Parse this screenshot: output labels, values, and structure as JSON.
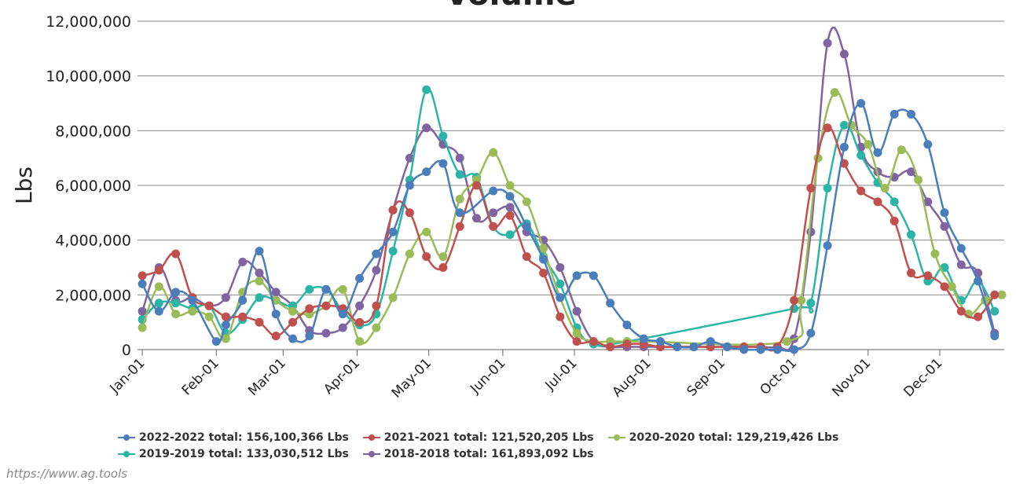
{
  "chart_data": {
    "type": "line",
    "title": "Volume",
    "xlabel": "",
    "ylabel": "Lbs",
    "ylim": [
      0,
      12000000
    ],
    "yticks": [
      0,
      2000000,
      4000000,
      6000000,
      8000000,
      10000000,
      12000000
    ],
    "ytick_labels": [
      "0",
      "2,000,000",
      "4,000,000",
      "6,000,000",
      "8,000,000",
      "10,000,000",
      "12,000,000"
    ],
    "xlim_day_of_year": [
      -2,
      361
    ],
    "xticks_day_of_year": [
      0,
      31,
      59,
      90,
      120,
      151,
      181,
      212,
      243,
      273,
      304,
      334
    ],
    "xtick_labels": [
      "Jan-01",
      "Feb-01",
      "Mar-01",
      "Apr-01",
      "May-01",
      "Jun-01",
      "Jul-01",
      "Aug-01",
      "Sep-01",
      "Oct-01",
      "Nov-01",
      "Dec-01"
    ],
    "x_note": "x values are day-of-year (0 = Jan-01)",
    "grid": "horizontal",
    "legend_position": "bottom",
    "series": [
      {
        "name": "2022-2022",
        "legend_label": "2022-2022 total: 156,100,366 Lbs",
        "color": "#4a7ebb",
        "points": [
          [
            0,
            2400000
          ],
          [
            7,
            1400000
          ],
          [
            14,
            2100000
          ],
          [
            21,
            1800000
          ],
          [
            31,
            300000
          ],
          [
            35,
            900000
          ],
          [
            42,
            1800000
          ],
          [
            49,
            3600000
          ],
          [
            56,
            1300000
          ],
          [
            63,
            400000
          ],
          [
            70,
            500000
          ],
          [
            77,
            2200000
          ],
          [
            84,
            1300000
          ],
          [
            91,
            2600000
          ],
          [
            98,
            3500000
          ],
          [
            105,
            4300000
          ],
          [
            112,
            6000000
          ],
          [
            119,
            6500000
          ],
          [
            126,
            6800000
          ],
          [
            133,
            5000000
          ],
          [
            147,
            5800000
          ],
          [
            154,
            5600000
          ],
          [
            161,
            4500000
          ],
          [
            168,
            3300000
          ],
          [
            175,
            1900000
          ],
          [
            182,
            2700000
          ],
          [
            189,
            2700000
          ],
          [
            196,
            1700000
          ],
          [
            203,
            900000
          ],
          [
            210,
            400000
          ],
          [
            217,
            300000
          ],
          [
            224,
            100000
          ],
          [
            231,
            100000
          ],
          [
            238,
            300000
          ],
          [
            245,
            100000
          ],
          [
            252,
            0
          ],
          [
            259,
            0
          ],
          [
            266,
            0
          ],
          [
            273,
            0
          ],
          [
            280,
            600000
          ],
          [
            287,
            3800000
          ],
          [
            294,
            7400000
          ],
          [
            301,
            9000000
          ],
          [
            308,
            7200000
          ],
          [
            315,
            8600000
          ],
          [
            322,
            8600000
          ],
          [
            329,
            7500000
          ],
          [
            336,
            5000000
          ],
          [
            343,
            3700000
          ],
          [
            350,
            2500000
          ],
          [
            357,
            500000
          ]
        ]
      },
      {
        "name": "2021-2021",
        "legend_label": "2021-2021 total: 121,520,205 Lbs",
        "color": "#c0504d",
        "points": [
          [
            0,
            2700000
          ],
          [
            7,
            2900000
          ],
          [
            14,
            3500000
          ],
          [
            21,
            1900000
          ],
          [
            28,
            1600000
          ],
          [
            35,
            1200000
          ],
          [
            42,
            1200000
          ],
          [
            49,
            1000000
          ],
          [
            56,
            500000
          ],
          [
            63,
            1000000
          ],
          [
            70,
            1500000
          ],
          [
            77,
            1600000
          ],
          [
            84,
            1500000
          ],
          [
            91,
            1000000
          ],
          [
            98,
            1600000
          ],
          [
            105,
            5100000
          ],
          [
            112,
            5000000
          ],
          [
            119,
            3400000
          ],
          [
            126,
            3000000
          ],
          [
            133,
            4500000
          ],
          [
            140,
            6000000
          ],
          [
            147,
            4500000
          ],
          [
            154,
            4900000
          ],
          [
            161,
            3400000
          ],
          [
            168,
            2800000
          ],
          [
            175,
            1200000
          ],
          [
            182,
            300000
          ],
          [
            189,
            300000
          ],
          [
            196,
            100000
          ],
          [
            203,
            200000
          ],
          [
            210,
            200000
          ],
          [
            217,
            100000
          ],
          [
            224,
            100000
          ],
          [
            231,
            100000
          ],
          [
            238,
            100000
          ],
          [
            245,
            100000
          ],
          [
            252,
            100000
          ],
          [
            259,
            100000
          ],
          [
            266,
            100000
          ],
          [
            273,
            1800000
          ],
          [
            280,
            5900000
          ],
          [
            287,
            8100000
          ],
          [
            294,
            6800000
          ],
          [
            301,
            5800000
          ],
          [
            308,
            5400000
          ],
          [
            315,
            4700000
          ],
          [
            322,
            2800000
          ],
          [
            329,
            2700000
          ],
          [
            336,
            2300000
          ],
          [
            343,
            1400000
          ],
          [
            350,
            1200000
          ],
          [
            357,
            2000000
          ]
        ]
      },
      {
        "name": "2020-2020",
        "legend_label": "2020-2020 total: 129,219,426 Lbs",
        "color": "#9bbb59",
        "points": [
          [
            0,
            800000
          ],
          [
            7,
            2300000
          ],
          [
            14,
            1300000
          ],
          [
            21,
            1400000
          ],
          [
            28,
            1200000
          ],
          [
            35,
            400000
          ],
          [
            42,
            2100000
          ],
          [
            49,
            2500000
          ],
          [
            56,
            1800000
          ],
          [
            63,
            1400000
          ],
          [
            70,
            1300000
          ],
          [
            77,
            1600000
          ],
          [
            84,
            2200000
          ],
          [
            91,
            300000
          ],
          [
            98,
            800000
          ],
          [
            105,
            1900000
          ],
          [
            112,
            3500000
          ],
          [
            119,
            4300000
          ],
          [
            126,
            3400000
          ],
          [
            133,
            5500000
          ],
          [
            140,
            6200000
          ],
          [
            147,
            7200000
          ],
          [
            154,
            6000000
          ],
          [
            161,
            5400000
          ],
          [
            168,
            3700000
          ],
          [
            175,
            1900000
          ],
          [
            182,
            600000
          ],
          [
            189,
            300000
          ],
          [
            196,
            300000
          ],
          [
            203,
            300000
          ],
          [
            210,
            300000
          ],
          [
            270,
            300000
          ],
          [
            276,
            1800000
          ],
          [
            283,
            7000000
          ],
          [
            290,
            9400000
          ],
          [
            297,
            8200000
          ],
          [
            304,
            7500000
          ],
          [
            311,
            5900000
          ],
          [
            318,
            7300000
          ],
          [
            325,
            6200000
          ],
          [
            332,
            3500000
          ],
          [
            339,
            2300000
          ],
          [
            346,
            1300000
          ],
          [
            353,
            1800000
          ],
          [
            360,
            2000000
          ]
        ]
      },
      {
        "name": "2019-2019",
        "legend_label": "2019-2019 total: 133,030,512 Lbs",
        "color": "#2cb5a7",
        "points": [
          [
            0,
            1100000
          ],
          [
            7,
            1700000
          ],
          [
            14,
            1700000
          ],
          [
            21,
            1500000
          ],
          [
            28,
            1600000
          ],
          [
            35,
            600000
          ],
          [
            42,
            1100000
          ],
          [
            49,
            1900000
          ],
          [
            56,
            1800000
          ],
          [
            63,
            1600000
          ],
          [
            70,
            2200000
          ],
          [
            77,
            2200000
          ],
          [
            84,
            1400000
          ],
          [
            91,
            900000
          ],
          [
            98,
            1300000
          ],
          [
            105,
            3600000
          ],
          [
            112,
            6200000
          ],
          [
            119,
            9500000
          ],
          [
            126,
            7800000
          ],
          [
            133,
            6400000
          ],
          [
            140,
            6300000
          ],
          [
            147,
            4500000
          ],
          [
            154,
            4200000
          ],
          [
            161,
            4600000
          ],
          [
            168,
            3400000
          ],
          [
            175,
            2400000
          ],
          [
            182,
            800000
          ],
          [
            189,
            200000
          ],
          [
            203,
            300000
          ],
          [
            273,
            1500000
          ],
          [
            280,
            1700000
          ],
          [
            287,
            5900000
          ],
          [
            294,
            8200000
          ],
          [
            301,
            7100000
          ],
          [
            308,
            6100000
          ],
          [
            315,
            5400000
          ],
          [
            322,
            4200000
          ],
          [
            329,
            2500000
          ],
          [
            336,
            3000000
          ],
          [
            343,
            1800000
          ],
          [
            350,
            2500000
          ],
          [
            357,
            1400000
          ]
        ]
      },
      {
        "name": "2018-2018",
        "legend_label": "2018-2018 total: 161,893,092 Lbs",
        "color": "#8064a2",
        "points": [
          [
            0,
            1400000
          ],
          [
            7,
            3000000
          ],
          [
            14,
            1800000
          ],
          [
            21,
            1900000
          ],
          [
            28,
            1600000
          ],
          [
            35,
            1900000
          ],
          [
            42,
            3200000
          ],
          [
            49,
            2800000
          ],
          [
            56,
            2100000
          ],
          [
            63,
            1600000
          ],
          [
            70,
            700000
          ],
          [
            77,
            600000
          ],
          [
            84,
            800000
          ],
          [
            91,
            1600000
          ],
          [
            98,
            2900000
          ],
          [
            105,
            5100000
          ],
          [
            112,
            7000000
          ],
          [
            119,
            8100000
          ],
          [
            126,
            7500000
          ],
          [
            133,
            7000000
          ],
          [
            140,
            4800000
          ],
          [
            147,
            5000000
          ],
          [
            154,
            5200000
          ],
          [
            161,
            4300000
          ],
          [
            168,
            4000000
          ],
          [
            175,
            3000000
          ],
          [
            182,
            1400000
          ],
          [
            189,
            300000
          ],
          [
            196,
            100000
          ],
          [
            203,
            100000
          ],
          [
            210,
            100000
          ],
          [
            217,
            100000
          ],
          [
            224,
            100000
          ],
          [
            231,
            100000
          ],
          [
            238,
            100000
          ],
          [
            245,
            100000
          ],
          [
            252,
            100000
          ],
          [
            259,
            100000
          ],
          [
            266,
            100000
          ],
          [
            273,
            400000
          ],
          [
            280,
            4300000
          ],
          [
            287,
            11200000
          ],
          [
            294,
            10800000
          ],
          [
            301,
            7400000
          ],
          [
            308,
            6500000
          ],
          [
            315,
            6300000
          ],
          [
            322,
            6500000
          ],
          [
            329,
            5400000
          ],
          [
            336,
            4500000
          ],
          [
            343,
            3100000
          ],
          [
            350,
            2800000
          ],
          [
            357,
            600000
          ]
        ]
      }
    ]
  },
  "footer": {
    "source": "https://www.ag.tools"
  }
}
